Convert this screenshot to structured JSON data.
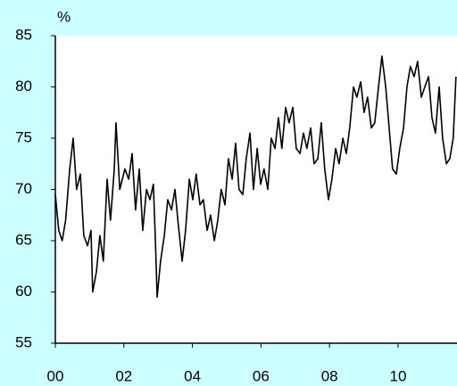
{
  "chart_data": {
    "type": "line",
    "y_label": "%",
    "x": [
      0,
      0.1,
      0.2,
      0.3,
      0.42,
      0.52,
      0.62,
      0.73,
      0.83,
      0.94,
      1.04,
      1.09,
      1.2,
      1.3,
      1.4,
      1.51,
      1.61,
      1.72,
      1.77,
      1.88,
      2.03,
      2.14,
      2.24,
      2.34,
      2.45,
      2.55,
      2.66,
      2.76,
      2.86,
      2.92,
      2.97,
      3.07,
      3.18,
      3.28,
      3.39,
      3.49,
      3.59,
      3.7,
      3.8,
      3.91,
      4.01,
      4.11,
      4.22,
      4.32,
      4.43,
      4.53,
      4.64,
      4.74,
      4.84,
      4.95,
      5.05,
      5.16,
      5.26,
      5.36,
      5.47,
      5.57,
      5.68,
      5.78,
      5.89,
      5.99,
      6.09,
      6.2,
      6.3,
      6.41,
      6.51,
      6.61,
      6.72,
      6.82,
      6.93,
      7.03,
      7.14,
      7.24,
      7.34,
      7.45,
      7.55,
      7.66,
      7.76,
      7.86,
      7.97,
      8.07,
      8.18,
      8.28,
      8.39,
      8.49,
      8.59,
      8.7,
      8.8,
      8.91,
      9.01,
      9.11,
      9.22,
      9.32,
      9.43,
      9.53,
      9.64,
      9.74,
      9.84,
      9.95,
      10.05,
      10.16,
      10.26,
      10.36,
      10.47,
      10.57,
      10.68,
      10.78,
      10.89,
      10.99,
      11.09,
      11.2,
      11.3,
      11.41,
      11.51,
      11.61,
      11.69
    ],
    "series": [
      {
        "color": "#000000",
        "values": [
          69.5,
          66,
          65,
          67,
          72,
          75,
          70,
          71.5,
          65.5,
          64.5,
          66,
          60,
          62,
          65.5,
          63,
          71,
          67,
          72,
          76.5,
          70,
          72,
          71,
          73.5,
          68,
          72,
          66,
          70,
          69,
          70.5,
          65,
          59.5,
          63,
          65.5,
          69,
          68,
          70,
          66.5,
          63,
          66,
          71,
          69,
          71.5,
          68.5,
          69,
          66,
          67.5,
          65,
          67,
          70,
          68.5,
          73,
          71,
          74.5,
          70,
          69.5,
          73,
          75.5,
          70,
          74,
          70.5,
          72,
          70,
          75,
          74,
          77,
          74,
          78,
          76.5,
          78,
          74,
          73.5,
          75.5,
          74,
          76,
          72.5,
          73,
          76.5,
          72,
          69,
          71,
          74,
          72.5,
          75,
          73.5,
          76,
          80,
          79,
          80.5,
          77.5,
          79,
          76,
          76.5,
          80,
          83,
          80,
          76,
          72,
          71.5,
          74,
          76,
          80,
          82,
          81,
          82.5,
          79,
          80,
          81,
          77,
          75.5,
          80,
          75,
          72.5,
          73,
          75,
          81
        ]
      }
    ],
    "xlim": [
      0,
      11.72
    ],
    "xticks": [
      {
        "value": 0,
        "label": "00"
      },
      {
        "value": 2,
        "label": "02"
      },
      {
        "value": 4,
        "label": "04"
      },
      {
        "value": 6,
        "label": "06"
      },
      {
        "value": 8,
        "label": "08"
      },
      {
        "value": 10,
        "label": "10"
      }
    ],
    "ylim": [
      55,
      85
    ],
    "yticks": [
      55,
      60,
      65,
      70,
      75,
      80,
      85
    ]
  }
}
